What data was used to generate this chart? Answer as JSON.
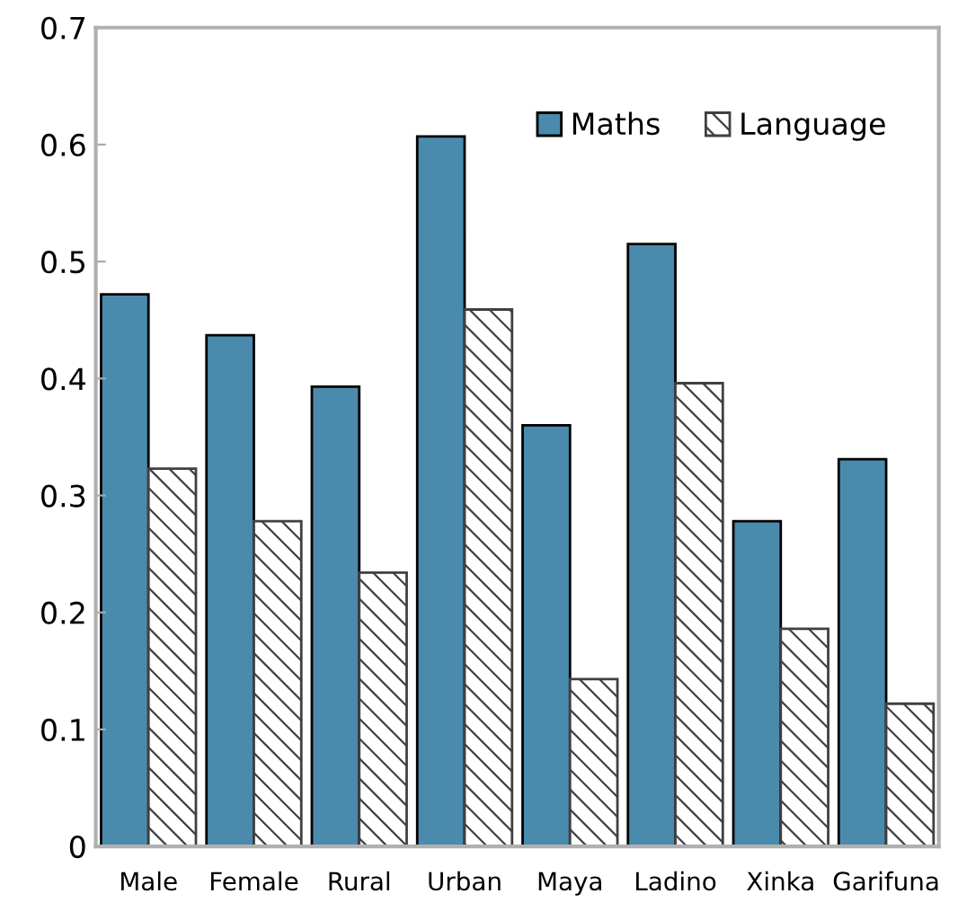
{
  "chart_data": {
    "type": "bar",
    "categories": [
      "Male",
      "Female",
      "Rural",
      "Urban",
      "Maya",
      "Ladino",
      "Xinka",
      "Garifuna"
    ],
    "series": [
      {
        "name": "Maths",
        "color": "#4a8aad",
        "values": [
          0.472,
          0.437,
          0.393,
          0.607,
          0.36,
          0.515,
          0.278,
          0.331
        ]
      },
      {
        "name": "Language",
        "color": "#404040",
        "values": [
          0.323,
          0.278,
          0.234,
          0.459,
          0.143,
          0.396,
          0.186,
          0.122
        ]
      }
    ],
    "ylim": [
      0,
      0.7
    ],
    "yticks": [
      {
        "value": 0,
        "label": "0"
      },
      0.1,
      0.2,
      0.3,
      0.4,
      0.5,
      0.6,
      0.7
    ],
    "grid": false,
    "legend": "top right"
  }
}
